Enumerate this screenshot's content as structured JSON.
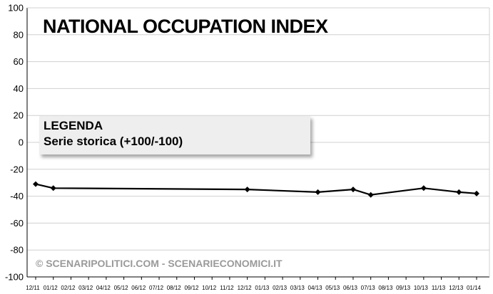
{
  "chart_data": {
    "type": "line",
    "title": "NATIONAL OCCUPATION INDEX",
    "xlabel": "",
    "ylabel": "",
    "ylim": [
      -100,
      100
    ],
    "yticks": [
      100,
      80,
      60,
      40,
      20,
      0,
      -20,
      -40,
      -60,
      -80,
      -100
    ],
    "grid": true,
    "categories": [
      "12/11",
      "01/12",
      "02/12",
      "03/12",
      "04/12",
      "05/12",
      "06/12",
      "07/12",
      "08/12",
      "09/12",
      "10/12",
      "11/12",
      "12/12",
      "01/13",
      "02/13",
      "03/13",
      "04/13",
      "05/13",
      "06/13",
      "07/13",
      "08/13",
      "09/13",
      "10/13",
      "11/13",
      "12/13",
      "01/14"
    ],
    "series": [
      {
        "color": "#000000",
        "values": [
          -31,
          -34,
          null,
          null,
          null,
          null,
          null,
          null,
          null,
          null,
          null,
          null,
          -35,
          null,
          null,
          null,
          -37,
          null,
          -35,
          -39,
          null,
          null,
          -34,
          null,
          -37,
          -38
        ]
      }
    ],
    "legend": {
      "title": "LEGENDA",
      "text": "Serie storica (+100/-100)",
      "placement": "top-left"
    },
    "watermark": "© SCENARIPOLITICI.COM - SCENARIECONOMICI.IT"
  }
}
